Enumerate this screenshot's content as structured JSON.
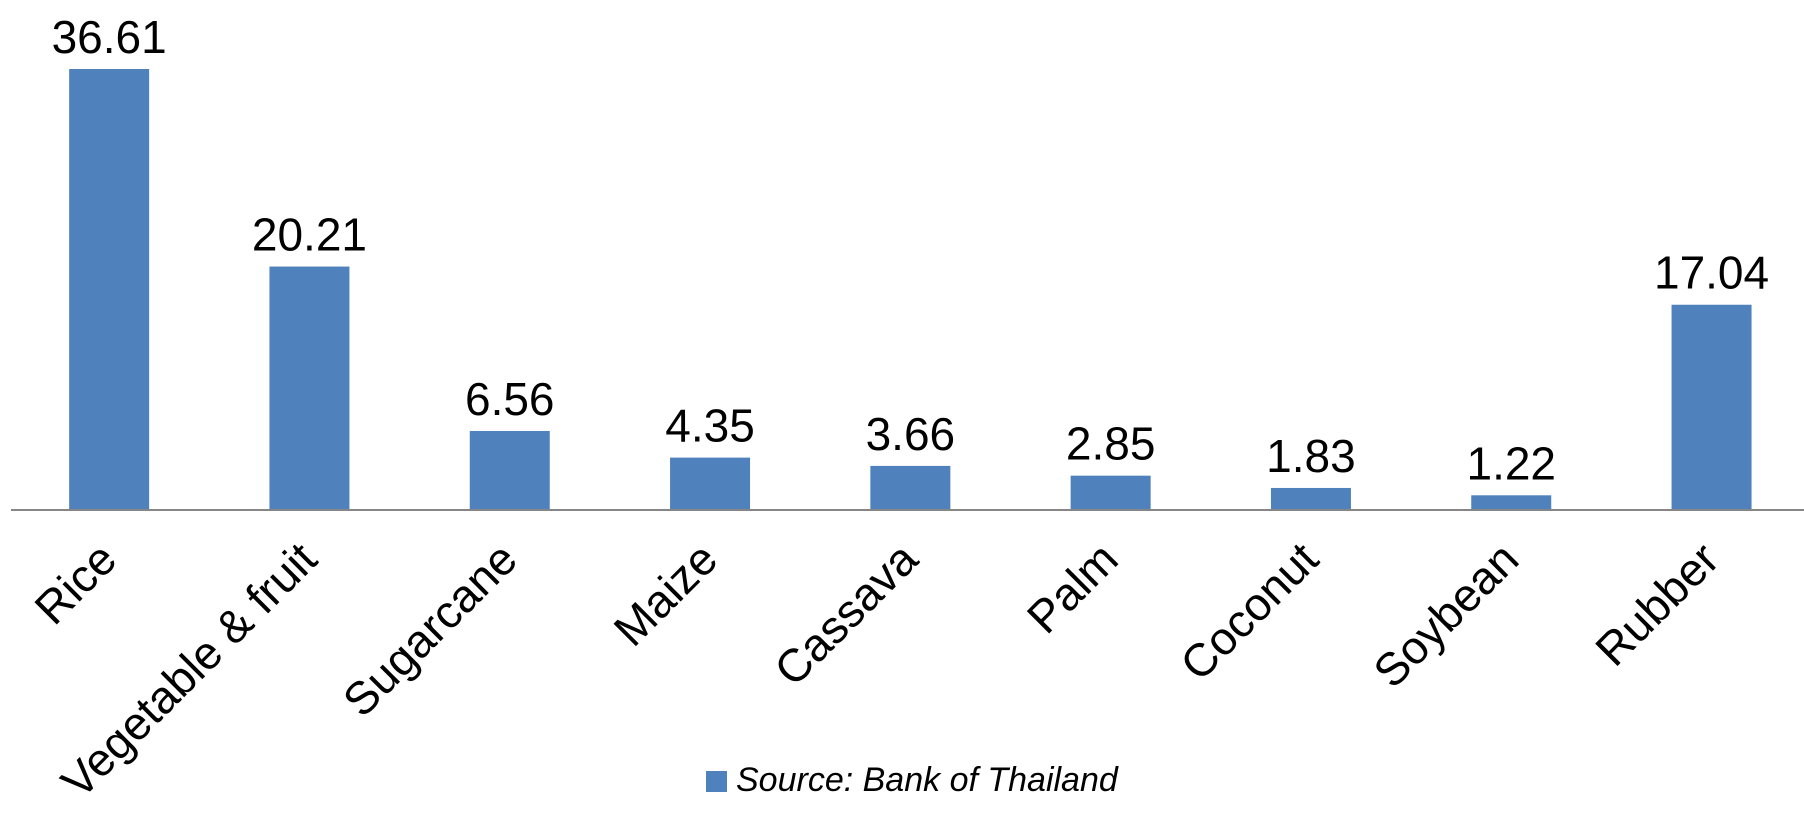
{
  "chart_data": {
    "type": "bar",
    "categories": [
      "Rice",
      "Vegetable & fruit",
      "Sugarcane",
      "Maize",
      "Cassava",
      "Palm",
      "Coconut",
      "Soybean",
      "Rubber"
    ],
    "series": [
      {
        "name": "Source: Bank of Thailand",
        "color": "#4f81bd",
        "values": [
          36.61,
          20.21,
          6.56,
          4.35,
          3.66,
          2.85,
          1.83,
          1.22,
          17.04
        ]
      }
    ],
    "legend": "bottom"
  }
}
